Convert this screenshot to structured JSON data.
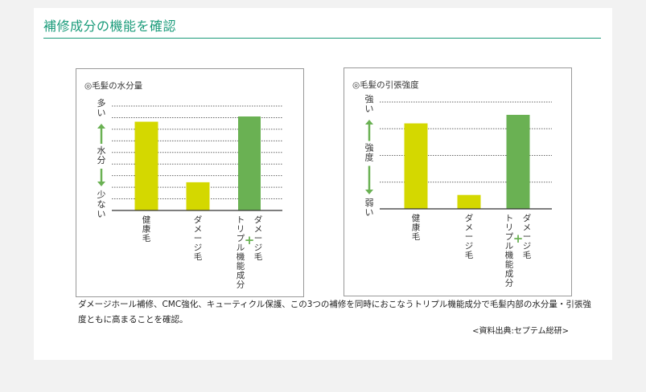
{
  "page": {
    "heading": "補修成分の機能を確認",
    "caption": "ダメージホール補修、CMC強化、キューティクル保護、この3つの補修を同時におこなうトリプル機能成分で毛髪内部の水分量・引張強度ともに高まることを確認。",
    "source": "<資料出典:セプテム総研>"
  },
  "colors": {
    "accent": "#1a9b7a",
    "yellow_bar": "#d4d800",
    "green_bar": "#6ab153",
    "arrow": "#6ab153",
    "plus": "#6ab153"
  },
  "chart_data": [
    {
      "type": "bar",
      "title": "◎毛髪の水分量",
      "y_axis": {
        "top_label": "多い",
        "middle_label": "水分",
        "bottom_label": "少ない",
        "tick_labels_shown": false
      },
      "categories": [
        {
          "parts": [
            "健康毛"
          ]
        },
        {
          "parts": [
            "ダメージ毛"
          ]
        },
        {
          "parts": [
            "ダメージ毛",
            "+",
            "トリプル機能成分"
          ]
        }
      ],
      "values": [
        0.85,
        0.27,
        0.9
      ],
      "bar_colors": [
        "#d4d800",
        "#d4d800",
        "#6ab153"
      ],
      "ylim": [
        0,
        1
      ],
      "gridlines": 9
    },
    {
      "type": "bar",
      "title": "◎毛髪の引張強度",
      "y_axis": {
        "top_label": "強い",
        "middle_label": "強度",
        "bottom_label": "弱い",
        "tick_labels_shown": false
      },
      "categories": [
        {
          "parts": [
            "健康毛"
          ]
        },
        {
          "parts": [
            "ダメージ毛"
          ]
        },
        {
          "parts": [
            "ダメージ毛",
            "+",
            "トリプル機能成分"
          ]
        }
      ],
      "values": [
        0.8,
        0.13,
        0.88
      ],
      "bar_colors": [
        "#d4d800",
        "#d4d800",
        "#6ab153"
      ],
      "ylim": [
        0,
        1
      ],
      "gridlines": 4
    }
  ]
}
